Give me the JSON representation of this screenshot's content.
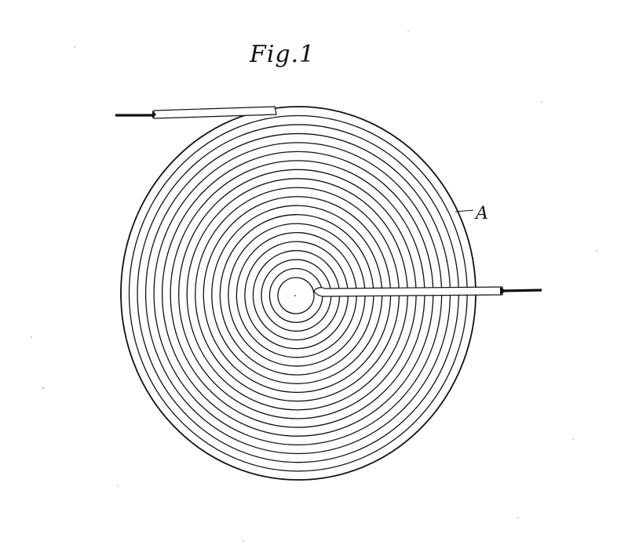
{
  "figure": {
    "title": "Fig.1",
    "label": "A"
  },
  "coil": {
    "turns": 20,
    "ink_color": "#111111",
    "paper_color": "#ffffff"
  }
}
